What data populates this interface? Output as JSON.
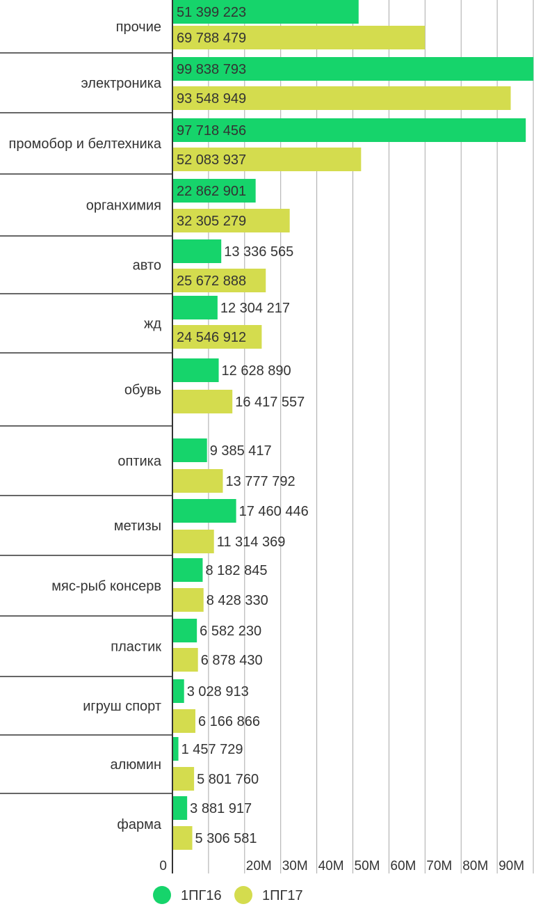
{
  "chart_data": {
    "type": "bar",
    "orientation": "horizontal",
    "categories": [
      "прочие",
      "электроника",
      "промобор и белтехника",
      "органхимия",
      "авто",
      "жд",
      "обувь",
      "оптика",
      "метизы",
      "мяс-рыб консерв",
      "пластик",
      "игруш спорт",
      "алюмин",
      "фарма"
    ],
    "series": [
      {
        "name": "1ПГ16",
        "color": "#16d46b",
        "values": [
          51399223,
          99838793,
          97718456,
          22862901,
          13336565,
          12304217,
          12628890,
          9385417,
          17460446,
          8182845,
          6582230,
          3028913,
          1457729,
          3881917
        ],
        "labels": [
          "51 399 223",
          "99 838 793",
          "97 718 456",
          "22 862 901",
          "13 336 565",
          "12 304 217",
          "12 628 890",
          "9 385 417",
          "17 460 446",
          "8 182 845",
          "6 582 230",
          "3 028 913",
          "1 457 729",
          "3 881 917"
        ]
      },
      {
        "name": "1ПГ17",
        "color": "#d4dc4e",
        "values": [
          69788479,
          93548949,
          52083937,
          32305279,
          25672888,
          24546912,
          16417557,
          13777792,
          11314369,
          8428330,
          6878430,
          6166866,
          5801760,
          5306581
        ],
        "labels": [
          "69 788 479",
          "93 548 949",
          "52 083 937",
          "32 305 279",
          "25 672 888",
          "24 546 912",
          "16 417 557",
          "13 777 792",
          "11 314 369",
          "8 428 330",
          "6 878 430",
          "6 166 866",
          "5 801 760",
          "5 306 581"
        ]
      }
    ],
    "x_ticks": [
      {
        "value": 0,
        "label": "0"
      },
      {
        "value": 10000000,
        "label": ""
      },
      {
        "value": 20000000,
        "label": "20M"
      },
      {
        "value": 30000000,
        "label": "30M"
      },
      {
        "value": 40000000,
        "label": "40M"
      },
      {
        "value": 50000000,
        "label": "50M"
      },
      {
        "value": 60000000,
        "label": "60M"
      },
      {
        "value": 70000000,
        "label": "70M"
      },
      {
        "value": 80000000,
        "label": "80M"
      },
      {
        "value": 90000000,
        "label": "90M"
      },
      {
        "value": 100000000,
        "label": ""
      }
    ],
    "xlim": [
      0,
      100000000
    ],
    "grid": true,
    "legend_position": "bottom",
    "title": "",
    "xlabel": "",
    "ylabel": ""
  },
  "colors": {
    "grid": "#a8a8a8",
    "axis": "#333333",
    "separator": "#333333",
    "text": "#333333"
  }
}
